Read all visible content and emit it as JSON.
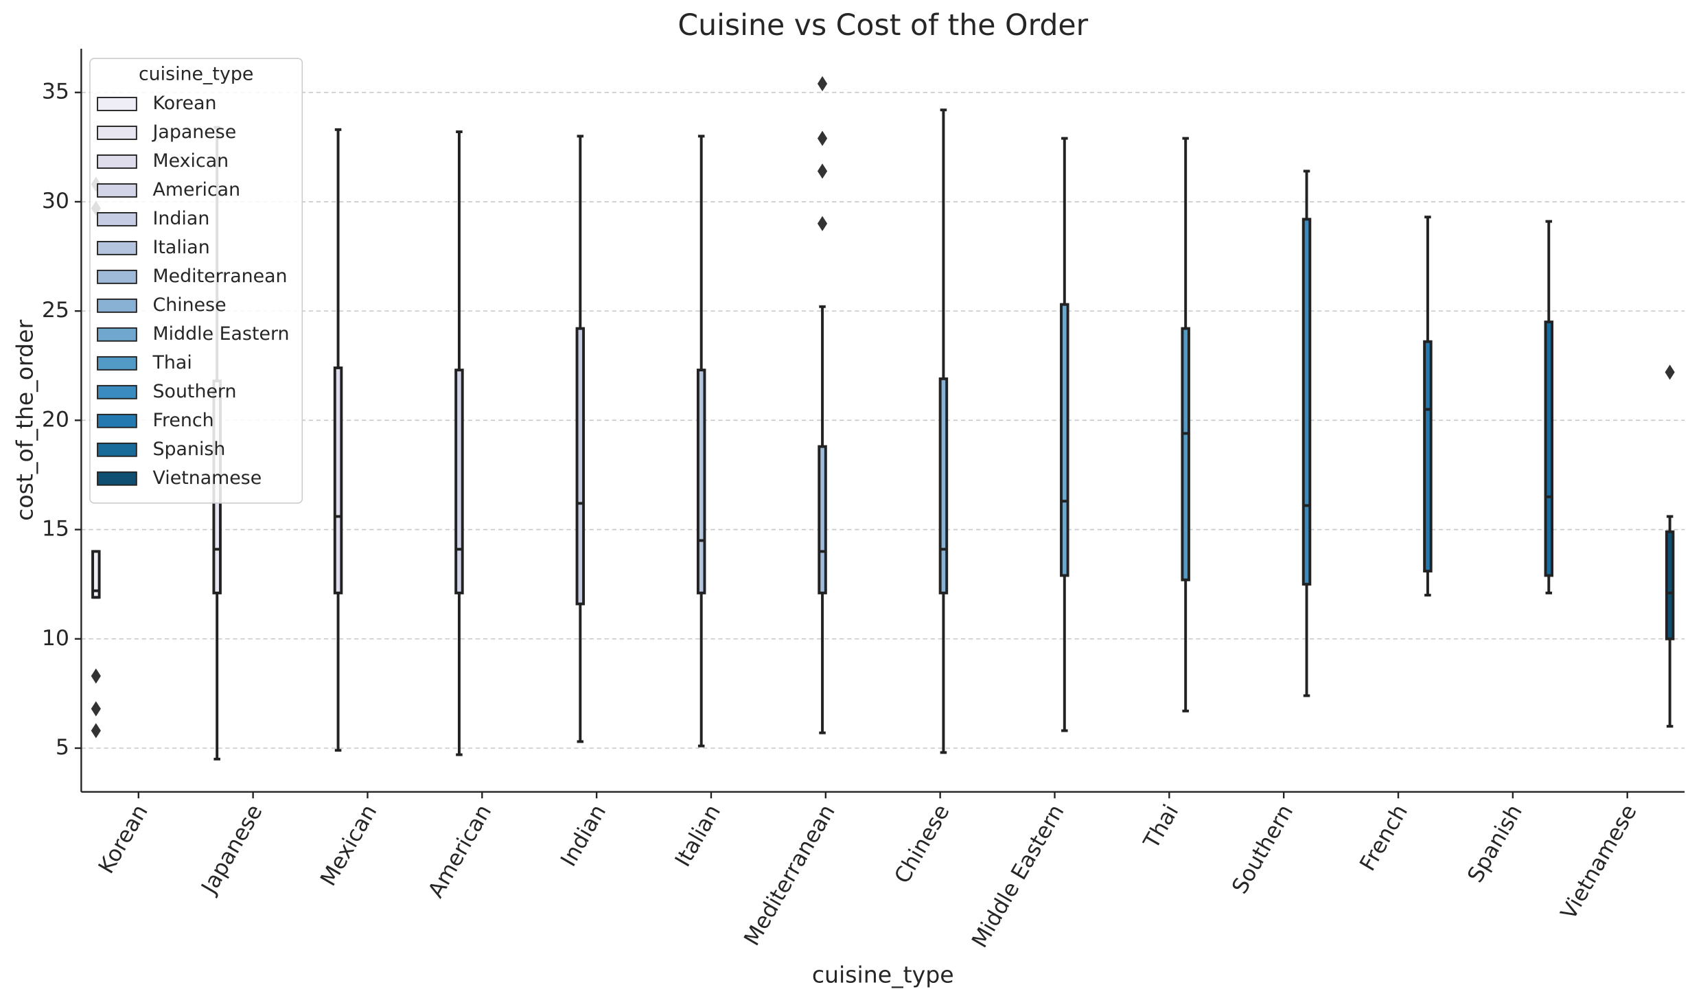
{
  "chart_data": {
    "type": "box",
    "title": "Cuisine vs Cost of the Order",
    "x_label": "cuisine_type",
    "y_label": "cost_of_the_order",
    "legend_title": "cuisine_type",
    "legend_position": "upper left",
    "grid": true,
    "ylim": [
      3,
      37
    ],
    "yticks": [
      5,
      10,
      15,
      20,
      25,
      30,
      35
    ],
    "categories": [
      "Korean",
      "Japanese",
      "Mexican",
      "American",
      "Indian",
      "Italian",
      "Mediterranean",
      "Chinese",
      "Middle Eastern",
      "Thai",
      "Southern",
      "French",
      "Spanish",
      "Vietnamese"
    ],
    "series": [
      {
        "name": "Korean",
        "color": "#efedf5",
        "stats": {
          "min": 11.9,
          "q1": 11.9,
          "median": 12.2,
          "q3": 14.0,
          "max": 14.0
        },
        "outliers": [
          30.8,
          29.7,
          8.3,
          6.8,
          5.8
        ]
      },
      {
        "name": "Japanese",
        "color": "#e8e6f1",
        "stats": {
          "min": 4.5,
          "q1": 12.1,
          "median": 14.1,
          "q3": 21.8,
          "max": 33.4
        },
        "outliers": []
      },
      {
        "name": "Mexican",
        "color": "#dfddec",
        "stats": {
          "min": 4.9,
          "q1": 12.1,
          "median": 15.6,
          "q3": 22.4,
          "max": 33.3
        },
        "outliers": []
      },
      {
        "name": "American",
        "color": "#d3d4e7",
        "stats": {
          "min": 4.7,
          "q1": 12.1,
          "median": 14.1,
          "q3": 22.3,
          "max": 33.2
        },
        "outliers": []
      },
      {
        "name": "Indian",
        "color": "#c5cce3",
        "stats": {
          "min": 5.3,
          "q1": 11.6,
          "median": 16.2,
          "q3": 24.2,
          "max": 33.0
        },
        "outliers": []
      },
      {
        "name": "Italian",
        "color": "#b4c4df",
        "stats": {
          "min": 5.1,
          "q1": 12.1,
          "median": 14.5,
          "q3": 22.3,
          "max": 33.0
        },
        "outliers": []
      },
      {
        "name": "Mediterranean",
        "color": "#9fbad9",
        "stats": {
          "min": 5.7,
          "q1": 12.1,
          "median": 14.0,
          "q3": 18.8,
          "max": 25.2
        },
        "outliers": [
          35.4,
          32.9,
          31.4,
          29.0
        ]
      },
      {
        "name": "Chinese",
        "color": "#89b1d4",
        "stats": {
          "min": 4.8,
          "q1": 12.1,
          "median": 14.1,
          "q3": 21.9,
          "max": 34.2
        },
        "outliers": []
      },
      {
        "name": "Middle Eastern",
        "color": "#6fa7ce",
        "stats": {
          "min": 5.8,
          "q1": 12.9,
          "median": 16.3,
          "q3": 25.3,
          "max": 32.9
        },
        "outliers": []
      },
      {
        "name": "Thai",
        "color": "#529bc6",
        "stats": {
          "min": 6.7,
          "q1": 12.7,
          "median": 19.4,
          "q3": 24.2,
          "max": 32.9
        },
        "outliers": []
      },
      {
        "name": "Southern",
        "color": "#3a8bbf",
        "stats": {
          "min": 7.4,
          "q1": 12.5,
          "median": 16.1,
          "q3": 29.2,
          "max": 31.4
        },
        "outliers": []
      },
      {
        "name": "French",
        "color": "#2479b0",
        "stats": {
          "min": 12.0,
          "q1": 13.1,
          "median": 20.5,
          "q3": 23.6,
          "max": 29.3
        },
        "outliers": []
      },
      {
        "name": "Spanish",
        "color": "#196b9a",
        "stats": {
          "min": 12.1,
          "q1": 12.9,
          "median": 16.5,
          "q3": 24.5,
          "max": 29.1
        },
        "outliers": []
      },
      {
        "name": "Vietnamese",
        "color": "#0f4f72",
        "stats": {
          "min": 6.0,
          "q1": 10.0,
          "median": 12.1,
          "q3": 14.9,
          "max": 15.6
        },
        "outliers": [
          22.2
        ]
      }
    ]
  }
}
